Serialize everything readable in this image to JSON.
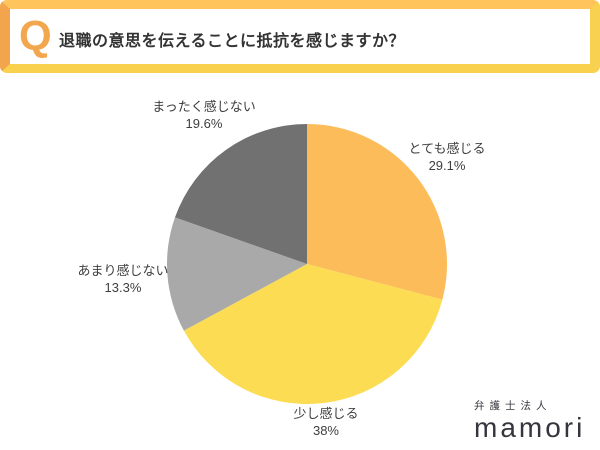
{
  "header": {
    "q_label": "Q",
    "question": "退職の意思を伝えることに抵抗を感じますか？"
  },
  "chart_data": {
    "type": "pie",
    "title": "退職の意思を伝えることに抵抗を感じますか？",
    "start_angle": "top",
    "direction": "clockwise",
    "legend_position": "none (direct labels around pie)",
    "slices": [
      {
        "label": "とても感じる",
        "value": 29.1,
        "pct_label": "29.1%",
        "color": "#FCBC59"
      },
      {
        "label": "少し感じる",
        "value": 38.0,
        "pct_label": "38%",
        "color": "#FCDC53"
      },
      {
        "label": "あまり感じない",
        "value": 13.3,
        "pct_label": "13.3%",
        "color": "#A9A9A9"
      },
      {
        "label": "まったく感じない",
        "value": 19.6,
        "pct_label": "19.6%",
        "color": "#717171"
      }
    ]
  },
  "footer": {
    "brand_top": "弁護士法人",
    "brand_name": "mamori"
  },
  "colors": {
    "band_border_top": "#FFC45C",
    "band_border_left": "#F2A54C",
    "band_border_right": "#F9D150",
    "band_border_bottom": "#F9D14F",
    "q_orange": "#F2A64D",
    "label_text": "#3E3E3E",
    "question_text": "#333333",
    "brand_text": "#35353D"
  }
}
